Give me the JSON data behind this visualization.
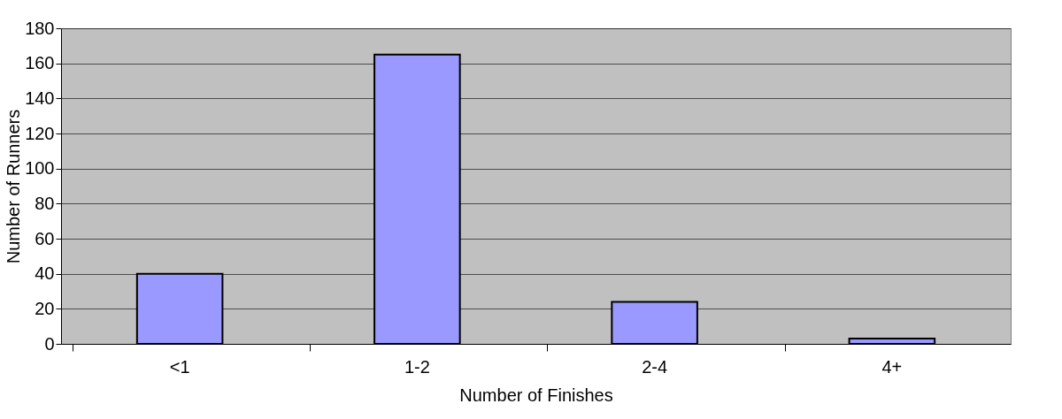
{
  "chart_data": {
    "type": "bar",
    "xlabel": "Number of Finishes",
    "ylabel": "Number of Runners",
    "categories": [
      "<1",
      "1-2",
      "2-4",
      "4+"
    ],
    "values": [
      40,
      165,
      24,
      3
    ],
    "color": "#9999ff",
    "ylim": [
      0,
      180
    ],
    "yticks": [
      0,
      20,
      40,
      60,
      80,
      100,
      120,
      140,
      160,
      180
    ],
    "grid": "y"
  }
}
